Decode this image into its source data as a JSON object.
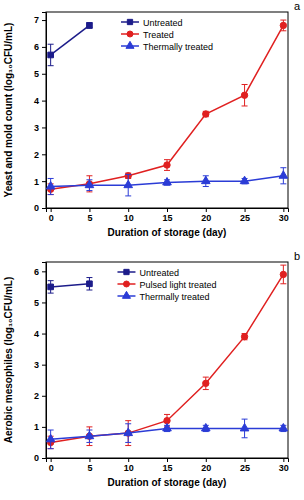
{
  "chart_data": [
    {
      "type": "line",
      "title": "a",
      "x_label": "Duration of storage (day)",
      "y_label": "Yeast and mold count (log₁₀CFU/mL)",
      "x": [
        0,
        5,
        10,
        15,
        20,
        25,
        30
      ],
      "xlim": [
        -0.6,
        30.6
      ],
      "xticks": [
        0,
        5,
        10,
        15,
        20,
        25,
        30
      ],
      "ylim": [
        0,
        7.3
      ],
      "yticks": [
        0,
        1,
        2,
        3,
        4,
        5,
        6,
        7
      ],
      "legend": "upper center",
      "series": [
        {
          "name": "Untreated",
          "color": "#1c1c8a",
          "marker": "square",
          "values": [
            5.7,
            6.8,
            null,
            null,
            null,
            null,
            null
          ],
          "errors": [
            0.4,
            0.1,
            null,
            null,
            null,
            null,
            null
          ]
        },
        {
          "name": "Treated",
          "color": "#e02020",
          "marker": "circle",
          "values": [
            0.7,
            0.9,
            1.2,
            1.6,
            3.5,
            4.2,
            6.8
          ],
          "errors": [
            0.2,
            0.3,
            0.1,
            0.2,
            0.1,
            0.4,
            0.2
          ]
        },
        {
          "name": "Thermally treated",
          "color": "#2b3cd6",
          "marker": "triangle",
          "values": [
            0.8,
            0.85,
            0.85,
            0.95,
            1.0,
            1.0,
            1.2
          ],
          "errors": [
            0.3,
            0.2,
            0.4,
            0.1,
            0.2,
            0.1,
            0.3
          ]
        }
      ]
    },
    {
      "type": "line",
      "title": "b",
      "x_label": "Duration of storage (day)",
      "y_label": "Aerobic mesophiles (log₁₀CFU/mL)",
      "x": [
        0,
        5,
        10,
        15,
        20,
        25,
        30
      ],
      "xlim": [
        -0.6,
        30.6
      ],
      "xticks": [
        0,
        5,
        10,
        15,
        20,
        25,
        30
      ],
      "ylim": [
        0,
        6.3
      ],
      "yticks": [
        0,
        1,
        2,
        3,
        4,
        5,
        6
      ],
      "legend": "upper center",
      "series": [
        {
          "name": "Untreated",
          "color": "#1c1c8a",
          "marker": "square",
          "values": [
            5.5,
            5.6,
            null,
            null,
            null,
            null,
            null
          ],
          "errors": [
            0.2,
            0.2,
            null,
            null,
            null,
            null,
            null
          ]
        },
        {
          "name": "Pulsed light treated",
          "color": "#e02020",
          "marker": "circle",
          "values": [
            0.5,
            0.7,
            0.8,
            1.2,
            2.4,
            3.9,
            5.9
          ],
          "errors": [
            0.2,
            0.3,
            0.4,
            0.2,
            0.2,
            0.1,
            0.3
          ]
        },
        {
          "name": "Thermally treated",
          "color": "#2b3cd6",
          "marker": "triangle",
          "values": [
            0.6,
            0.7,
            0.8,
            0.95,
            0.95,
            0.95,
            0.95
          ],
          "errors": [
            0.3,
            0.2,
            0.3,
            0.1,
            0.1,
            0.3,
            0.1
          ]
        }
      ]
    }
  ]
}
